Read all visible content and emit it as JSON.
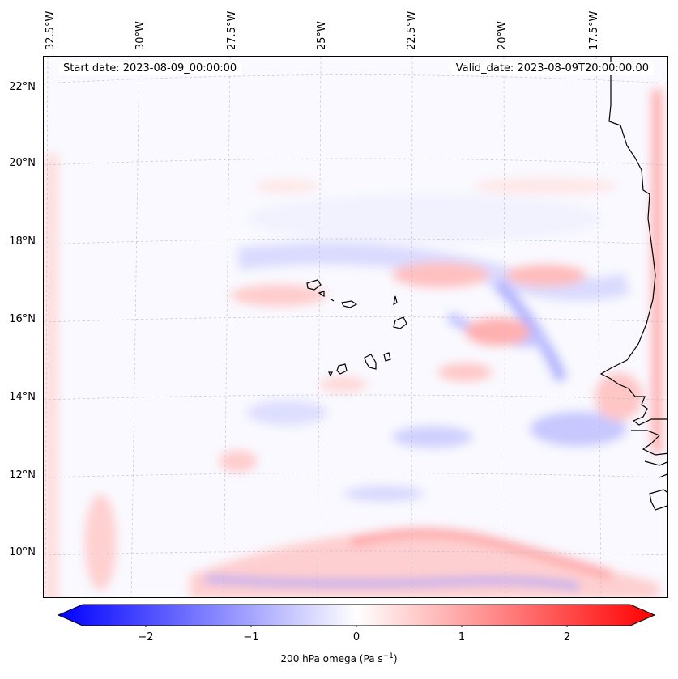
{
  "header": {
    "start_date": "Start date: 2023-08-09_00:00:00",
    "valid_date": "Valid_date: 2023-08-09T20:00:00.00"
  },
  "axes": {
    "longitude_labels": [
      "32.5°W",
      "30°W",
      "27.5°W",
      "25°W",
      "22.5°W",
      "20°W",
      "17.5°W"
    ],
    "latitude_labels": [
      "22°N",
      "20°N",
      "18°N",
      "16°N",
      "14°N",
      "12°N",
      "10°N"
    ]
  },
  "colorbar": {
    "label_main": "200 hPa omega (Pa s",
    "label_exp": "−1",
    "label_close": ")",
    "ticks": [
      "−2",
      "−1",
      "0",
      "1",
      "2"
    ],
    "range": [
      -2.6,
      2.6
    ],
    "colors": {
      "negative": "#0000ff",
      "zero": "#ffffff",
      "positive": "#ff0000"
    }
  },
  "map": {
    "gridlines": "dashed",
    "coastline_color": "#000000",
    "field": "200 hPa omega"
  }
}
